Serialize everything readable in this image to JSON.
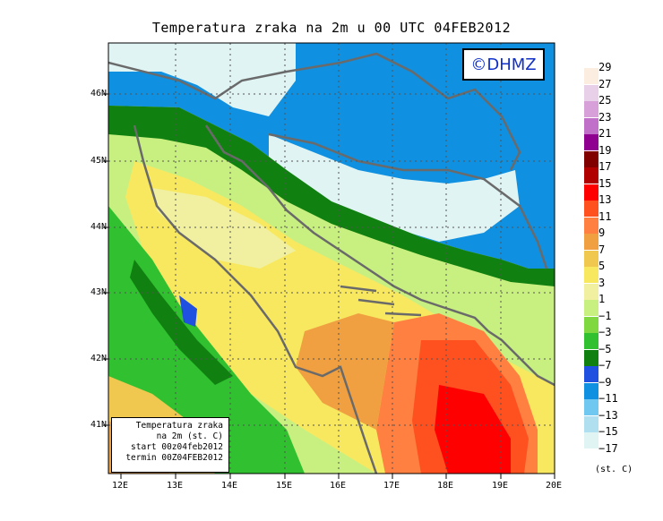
{
  "title": "Temperatura zraka na 2m u 00 UTC 04FEB2012",
  "watermark": "©DHMZ",
  "info_box": {
    "line1": "Temperatura zraka",
    "line2": "na 2m (st. C)",
    "line3": "start 00z04feb2012",
    "line4": "termin 00Z04FEB2012"
  },
  "lat_labels": [
    "46N",
    "45N",
    "44N",
    "43N",
    "42N",
    "41N"
  ],
  "lon_labels": [
    "12E",
    "13E",
    "14E",
    "15E",
    "16E",
    "17E",
    "18E",
    "19E",
    "20E"
  ],
  "legend": {
    "labels": [
      "29",
      "27",
      "25",
      "23",
      "21",
      "19",
      "17",
      "15",
      "13",
      "11",
      "9",
      "7",
      "5",
      "3",
      "1",
      "−1",
      "−3",
      "−5",
      "−7",
      "−9",
      "−11",
      "−13",
      "−15",
      "−17"
    ],
    "colors": [
      "#fbeee0",
      "#e8d0e8",
      "#d8a0d8",
      "#c070c8",
      "#900090",
      "#800000",
      "#b00000",
      "#ff0000",
      "#ff5020",
      "#ff8040",
      "#f0a040",
      "#f0c850",
      "#f8e860",
      "#f0f0a0",
      "#c8f080",
      "#80d840",
      "#30c030",
      "#108010",
      "#2050e0",
      "#1090e0",
      "#70c8f0",
      "#b0e0f0",
      "#e0f4f4",
      "#ffffff"
    ],
    "unit": "(st. C)"
  }
}
